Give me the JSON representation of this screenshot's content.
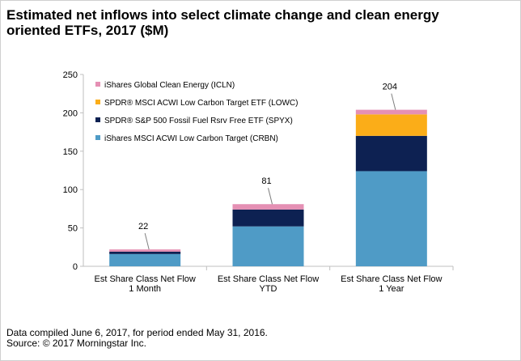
{
  "title": {
    "line1": "Estimated net inflows into select climate change and clean energy",
    "line2": "oriented ETFs, 2017 ($M)"
  },
  "footer": {
    "line1": "Data compiled June 6, 2017, for period ended May 31, 2016.",
    "line2": "Source: © 2017 Morningstar Inc."
  },
  "chart_data": {
    "type": "bar",
    "stacked": true,
    "title": "Estimated net inflows into select climate change and clean energy oriented ETFs, 2017 ($M)",
    "categories": [
      [
        "Est Share Class Net Flow",
        "1 Month"
      ],
      [
        "Est Share Class Net Flow",
        "YTD"
      ],
      [
        "Est Share Class Net Flow",
        "1 Year"
      ]
    ],
    "series": [
      {
        "name": "iShares MSCI ACWI Low Carbon Target (CRBN)",
        "color": "#4f9bc6",
        "values": [
          16,
          52,
          124
        ]
      },
      {
        "name": "SPDR® S&P 500 Fossil Fuel Rsrv Free ETF (SPYX)",
        "color": "#0d2152",
        "values": [
          3,
          22,
          46
        ]
      },
      {
        "name": "SPDR® MSCI ACWI Low Carbon Target ETF (LOWC)",
        "color": "#fbad18",
        "values": [
          0,
          0,
          28
        ]
      },
      {
        "name": "iShares Global Clean Energy (ICLN)",
        "color": "#e590b4",
        "values": [
          3,
          7,
          6
        ]
      }
    ],
    "totals": [
      22,
      81,
      204
    ],
    "ylim": [
      0,
      250
    ],
    "yticks": [
      0,
      50,
      100,
      150,
      200,
      250
    ],
    "grid": false,
    "legend_position": "top-left"
  }
}
